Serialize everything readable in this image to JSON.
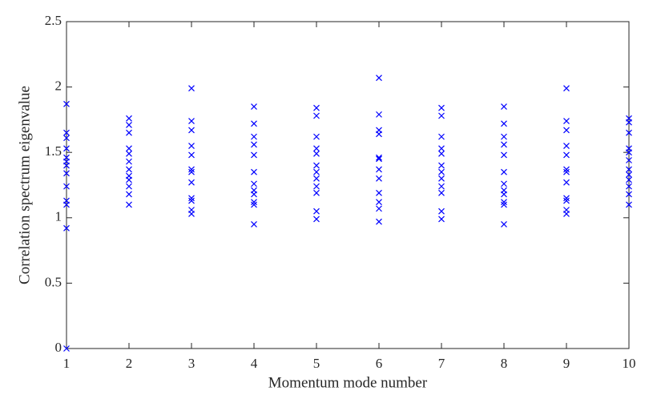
{
  "chart_data": {
    "type": "scatter",
    "xlabel": "Momentum mode number",
    "ylabel": "Correlation spectrum eigenvalue",
    "color": "#0000ff",
    "xlim": [
      1,
      10
    ],
    "xticks": [
      1,
      2,
      3,
      4,
      5,
      6,
      7,
      8,
      9,
      10
    ],
    "ylim": [
      0,
      2.5
    ],
    "yticks": [
      0,
      0.5,
      1,
      1.5,
      2,
      2.5
    ],
    "x": [
      1,
      1,
      1,
      1,
      1,
      1,
      1,
      1,
      1,
      1,
      1,
      1,
      1,
      2,
      2,
      2,
      2,
      2,
      2,
      2,
      2,
      2,
      2,
      2,
      2,
      3,
      3,
      3,
      3,
      3,
      3,
      3,
      3,
      3,
      3,
      3,
      3,
      4,
      4,
      4,
      4,
      4,
      4,
      4,
      4,
      4,
      4,
      4,
      4,
      5,
      5,
      5,
      5,
      5,
      5,
      5,
      5,
      5,
      5,
      5,
      5,
      6,
      6,
      6,
      6,
      6,
      6,
      6,
      6,
      6,
      6,
      6,
      6,
      7,
      7,
      7,
      7,
      7,
      7,
      7,
      7,
      7,
      7,
      7,
      7,
      8,
      8,
      8,
      8,
      8,
      8,
      8,
      8,
      8,
      8,
      8,
      8,
      9,
      9,
      9,
      9,
      9,
      9,
      9,
      9,
      9,
      9,
      9,
      9,
      10,
      10,
      10,
      10,
      10,
      10,
      10,
      10,
      10,
      10,
      10,
      10
    ],
    "values": [
      1.87,
      1.65,
      1.61,
      1.53,
      1.46,
      1.43,
      1.4,
      1.34,
      1.24,
      1.13,
      1.1,
      0.92,
      0,
      1.76,
      1.71,
      1.65,
      1.53,
      1.49,
      1.43,
      1.37,
      1.32,
      1.29,
      1.24,
      1.18,
      1.1,
      1.99,
      1.74,
      1.67,
      1.55,
      1.48,
      1.37,
      1.35,
      1.27,
      1.15,
      1.13,
      1.06,
      1.03,
      1.85,
      1.72,
      1.62,
      1.56,
      1.48,
      1.35,
      1.26,
      1.21,
      1.18,
      1.12,
      1.1,
      0.95,
      1.84,
      1.78,
      1.62,
      1.53,
      1.49,
      1.4,
      1.35,
      1.3,
      1.24,
      1.19,
      1.05,
      0.99,
      2.07,
      1.79,
      1.67,
      1.64,
      1.46,
      1.45,
      1.37,
      1.3,
      1.19,
      1.12,
      1.07,
      0.97,
      1.84,
      1.78,
      1.62,
      1.53,
      1.49,
      1.4,
      1.35,
      1.3,
      1.24,
      1.19,
      1.05,
      0.99,
      1.85,
      1.72,
      1.62,
      1.56,
      1.48,
      1.35,
      1.26,
      1.21,
      1.18,
      1.12,
      1.1,
      0.95,
      1.99,
      1.74,
      1.67,
      1.55,
      1.48,
      1.37,
      1.35,
      1.27,
      1.15,
      1.13,
      1.06,
      1.03,
      1.76,
      1.73,
      1.65,
      1.53,
      1.5,
      1.44,
      1.37,
      1.33,
      1.29,
      1.24,
      1.18,
      1.1
    ]
  }
}
